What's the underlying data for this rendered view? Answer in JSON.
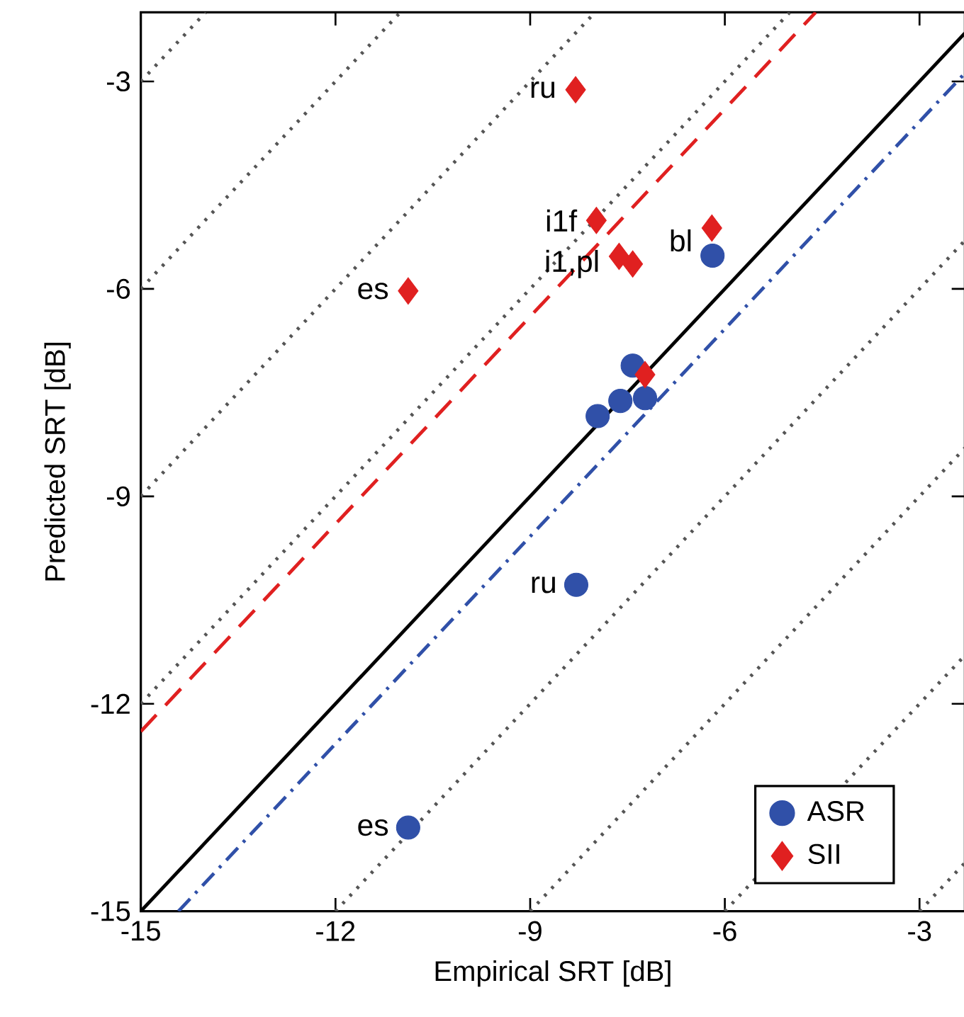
{
  "chart_data": {
    "type": "scatter",
    "xlabel": "Empirical SRT [dB]",
    "ylabel": "Predicted SRT [dB]",
    "xlim": [
      -15,
      -2.3
    ],
    "ylim": [
      -15,
      -2
    ],
    "xticks": [
      -15,
      -12,
      -9,
      -6,
      -3
    ],
    "yticks": [
      -15,
      -12,
      -9,
      -6,
      -3
    ],
    "grid": false,
    "legend": "bottom right",
    "series": [
      {
        "type": "line",
        "color": "#555555",
        "line_style": "dotted",
        "x": [
          -15,
          -5
        ],
        "values": [
          -12,
          -2
        ]
      },
      {
        "type": "line",
        "color": "#555555",
        "line_style": "dotted",
        "x": [
          -15,
          -8
        ],
        "values": [
          -9,
          -2
        ]
      },
      {
        "type": "line",
        "color": "#555555",
        "line_style": "dotted",
        "x": [
          -15,
          -11
        ],
        "values": [
          -6,
          -2
        ]
      },
      {
        "type": "line",
        "color": "#555555",
        "line_style": "dotted",
        "x": [
          -15,
          -14
        ],
        "values": [
          -3,
          -2
        ]
      },
      {
        "type": "line",
        "color": "#555555",
        "line_style": "dotted",
        "x": [
          -12,
          -2.3
        ],
        "values": [
          -15,
          -5.3
        ]
      },
      {
        "type": "line",
        "color": "#555555",
        "line_style": "dotted",
        "x": [
          -9,
          -2.3
        ],
        "values": [
          -15,
          -8.3
        ]
      },
      {
        "type": "line",
        "color": "#555555",
        "line_style": "dotted",
        "x": [
          -6,
          -2.3
        ],
        "values": [
          -15,
          -11.3
        ]
      },
      {
        "type": "line",
        "color": "#555555",
        "line_style": "dotted",
        "x": [
          -3,
          -2.3
        ],
        "values": [
          -15,
          -14.3
        ]
      },
      {
        "type": "line",
        "color": "#000000",
        "line_style": "solid",
        "x": [
          -15,
          -2.3
        ],
        "values": [
          -15,
          -2.3
        ]
      },
      {
        "type": "line",
        "color": "#3050a8",
        "line_style": "dashdot",
        "x": [
          -14.42,
          -2.3
        ],
        "values": [
          -15,
          -2.88
        ]
      },
      {
        "type": "line",
        "color": "#e02020",
        "line_style": "dashed",
        "x": [
          -15,
          -4.6
        ],
        "values": [
          -12.4,
          -2
        ]
      },
      {
        "name": "ASR",
        "marker": "circle",
        "color": "#3050a8",
        "x": [
          -6.19,
          -7.42,
          -7.61,
          -7.23,
          -7.96,
          -8.29,
          -10.88
        ],
        "values": [
          -5.52,
          -7.11,
          -7.62,
          -7.58,
          -7.84,
          -10.28,
          -13.79
        ]
      },
      {
        "name": "SII",
        "marker": "diamond",
        "color": "#e02020",
        "x": [
          -8.3,
          -7.98,
          -6.2,
          -7.63,
          -7.42,
          -10.88,
          -7.23
        ],
        "values": [
          -3.12,
          -5.01,
          -5.12,
          -5.53,
          -5.64,
          -6.03,
          -7.24
        ]
      }
    ],
    "annotations": [
      {
        "text": "ru",
        "x": -8.3,
        "y": -3.12
      },
      {
        "text": "i1f",
        "x": -7.98,
        "y": -5.01
      },
      {
        "text": "i1,pl",
        "x": -7.63,
        "y": -5.64
      },
      {
        "text": "es",
        "x": -10.88,
        "y": -6.03
      },
      {
        "text": "bl",
        "x": -6.2,
        "y": -5.3
      },
      {
        "text": "ru",
        "x": -8.29,
        "y": -10.28
      },
      {
        "text": "es",
        "x": -10.88,
        "y": -13.79
      }
    ]
  }
}
